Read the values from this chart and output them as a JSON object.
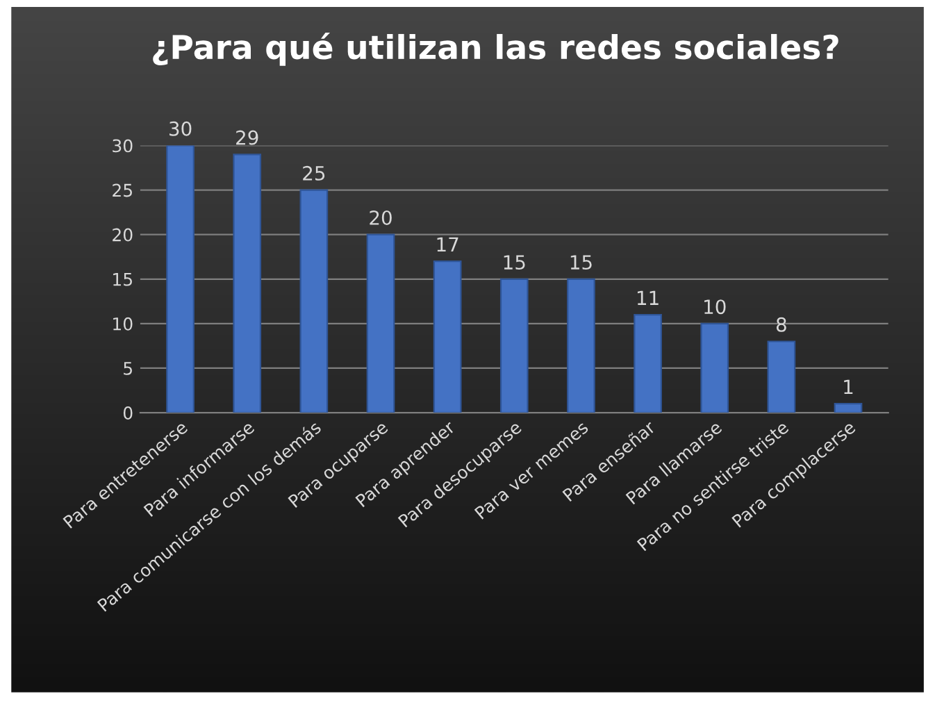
{
  "chart_data": {
    "type": "bar",
    "title": "¿Para qué utilizan las redes sociales?",
    "categories": [
      "Para entretenerse",
      "Para informarse",
      "Para comunicarse con los demás",
      "Para ocuparse",
      "Para aprender",
      "Para desocuparse",
      "Para ver memes",
      "Para enseñar",
      "Para llamarse",
      "Para no sentirse triste",
      "Para complacerse"
    ],
    "values": [
      30,
      29,
      25,
      20,
      17,
      15,
      15,
      11,
      10,
      8,
      1
    ],
    "color": "#4472c4",
    "ylim": [
      0,
      30
    ],
    "yticks": [
      0,
      5,
      10,
      15,
      20,
      25,
      30
    ],
    "grid": "y",
    "data_labels": true,
    "legend": false
  }
}
